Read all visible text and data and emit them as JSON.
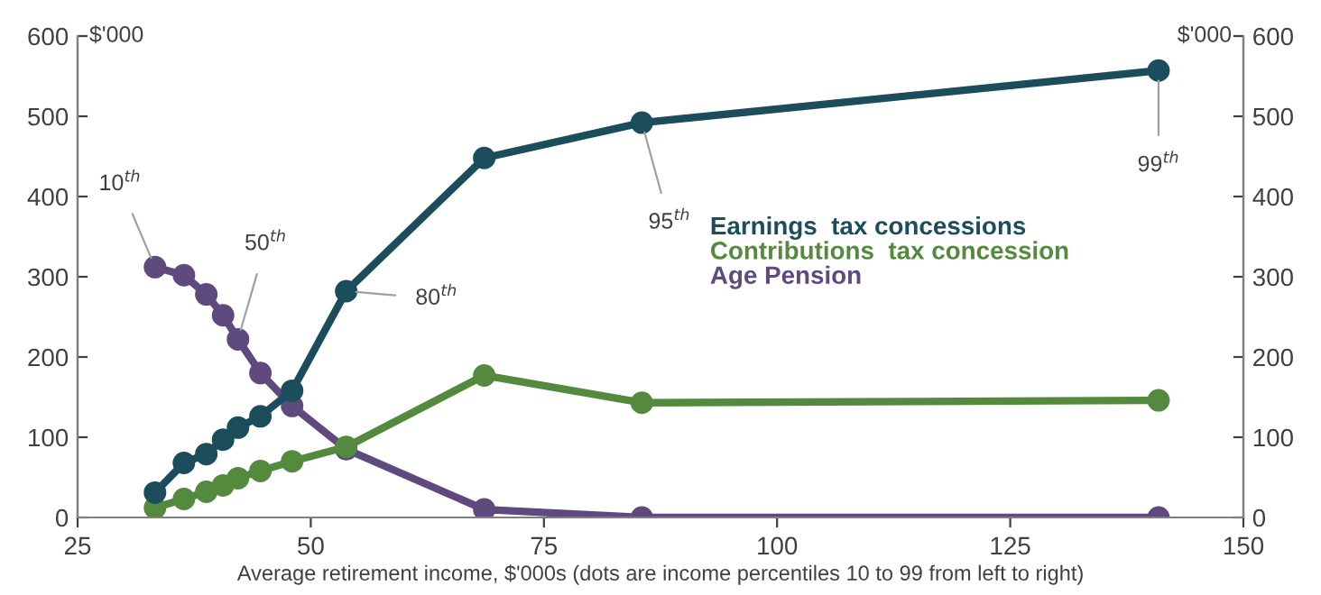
{
  "chart_data": {
    "type": "line",
    "xlabel": "Average retirement income, $'000s (dots are income percentiles 10 to 99 from left to right)",
    "ylabel": "$'000",
    "y2label": "$'000",
    "x": [
      33.3,
      36.4,
      38.8,
      40.6,
      42.2,
      44.6,
      48.0,
      53.8,
      68.6,
      85.5,
      140.9
    ],
    "series": [
      {
        "name": "Earnings  tax concessions",
        "color": "#1b4d5c",
        "values": [
          31,
          68,
          79,
          97,
          112,
          126,
          158,
          282,
          448,
          492,
          557
        ]
      },
      {
        "name": "Contributions  tax concession",
        "color": "#548a3e",
        "values": [
          12,
          23,
          32,
          40,
          49,
          58,
          70,
          88,
          177,
          143,
          146
        ]
      },
      {
        "name": "Age Pension",
        "color": "#5e4a7e",
        "values": [
          312,
          302,
          278,
          252,
          222,
          180,
          139,
          85,
          10,
          0,
          0
        ]
      }
    ],
    "annotations": [
      {
        "text": "10$^{th}$",
        "x": 33.3,
        "y": 312
      },
      {
        "text": "50$^{th}$",
        "x": 42.2,
        "y": 222
      },
      {
        "text": "80$^{th}$",
        "x": 53.8,
        "y": 282
      },
      {
        "text": "95$^{th}$",
        "x": 85.5,
        "y": 492
      },
      {
        "text": "99$^{th}$",
        "x": 140.9,
        "y": 557
      }
    ],
    "xlim": [
      25,
      150
    ],
    "xticks": [
      25,
      50,
      75,
      100,
      125,
      150
    ],
    "ylim": [
      0,
      600
    ],
    "yticks": [
      0,
      100,
      200,
      300,
      400,
      500,
      600
    ],
    "y2lim": [
      0,
      600
    ],
    "y2ticks": [
      0,
      100,
      200,
      300,
      400,
      500,
      600
    ],
    "marker": "circle",
    "line_style": "solid",
    "legend": "right",
    "grid": false
  }
}
